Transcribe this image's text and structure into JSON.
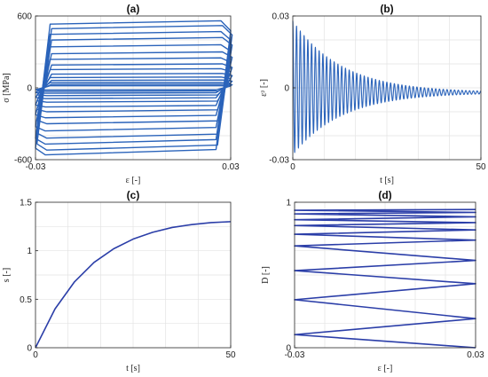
{
  "colors": {
    "series": "#2a63ba",
    "series_dark": "#2b3ea8",
    "grid": "#e3e3e3",
    "axis": "#262626"
  },
  "chart_data": [
    {
      "id": "a",
      "type": "line",
      "title": "(a)",
      "xlabel": "ε [-]",
      "ylabel": "σ [MPa]",
      "xlim": [
        -0.03,
        0.03
      ],
      "ylim": [
        -600,
        600
      ],
      "xticks": [
        -0.03,
        0.03
      ],
      "xtick_labels": [
        "-0.03",
        "0.03"
      ],
      "yticks": [
        -600,
        0,
        600
      ],
      "ytick_labels": [
        "-600",
        "0",
        "600"
      ],
      "grid": true,
      "description_of_series": "decaying stress-strain hysteresis loops",
      "loop_amplitudes_MPa": [
        560,
        520,
        470,
        420,
        360,
        300,
        250,
        200,
        160,
        120,
        90,
        65,
        45,
        30,
        18
      ]
    },
    {
      "id": "b",
      "type": "line",
      "title": "(b)",
      "xlabel": "t [s]",
      "ylabel": "εᵖ [-]",
      "xlim": [
        0,
        50
      ],
      "ylim": [
        -0.03,
        0.03
      ],
      "xticks": [
        0,
        50
      ],
      "xtick_labels": [
        "0",
        "50"
      ],
      "yticks": [
        -0.03,
        0,
        0.03
      ],
      "ytick_labels": [
        "-0.03",
        "0",
        "0.03"
      ],
      "grid": true,
      "initial_amplitude": 0.028,
      "decay_time_s": 13,
      "cycles_per_second": 1,
      "final_offset": -0.002
    },
    {
      "id": "c",
      "type": "line",
      "title": "(c)",
      "xlabel": "t [s]",
      "ylabel": "s [-]",
      "xlim": [
        0,
        50
      ],
      "ylim": [
        0,
        1.5
      ],
      "xticks": [
        0,
        50
      ],
      "xtick_labels": [
        "0",
        "50"
      ],
      "yticks": [
        0,
        0.5,
        1,
        1.5
      ],
      "ytick_labels": [
        "0",
        "0.5",
        "1",
        "1.5"
      ],
      "grid": true,
      "x": [
        0,
        5,
        10,
        15,
        20,
        25,
        30,
        35,
        40,
        45,
        50
      ],
      "y": [
        0,
        0.4,
        0.68,
        0.88,
        1.02,
        1.12,
        1.19,
        1.24,
        1.27,
        1.29,
        1.3
      ]
    },
    {
      "id": "d",
      "type": "line",
      "title": "(d)",
      "xlabel": "ε [-]",
      "ylabel": "D [-]",
      "xlim": [
        -0.03,
        0.03
      ],
      "ylim": [
        0,
        1
      ],
      "xticks": [
        -0.03,
        0.03
      ],
      "xtick_labels": [
        "-0.03",
        "0.03"
      ],
      "yticks": [
        0,
        1
      ],
      "ytick_labels": [
        "0",
        "1"
      ],
      "grid": true,
      "zigzag_points": [
        [
          0.03,
          0.0
        ],
        [
          -0.03,
          0.09
        ],
        [
          0.03,
          0.2
        ],
        [
          -0.03,
          0.33
        ],
        [
          0.03,
          0.44
        ],
        [
          -0.03,
          0.53
        ],
        [
          0.03,
          0.6
        ],
        [
          -0.03,
          0.7
        ],
        [
          0.03,
          0.74
        ],
        [
          -0.03,
          0.78
        ],
        [
          0.03,
          0.81
        ],
        [
          -0.03,
          0.84
        ],
        [
          0.03,
          0.86
        ],
        [
          -0.03,
          0.88
        ],
        [
          0.03,
          0.9
        ],
        [
          -0.03,
          0.92
        ],
        [
          0.03,
          0.93
        ],
        [
          -0.03,
          0.945
        ],
        [
          0.03,
          0.95
        ]
      ]
    }
  ]
}
